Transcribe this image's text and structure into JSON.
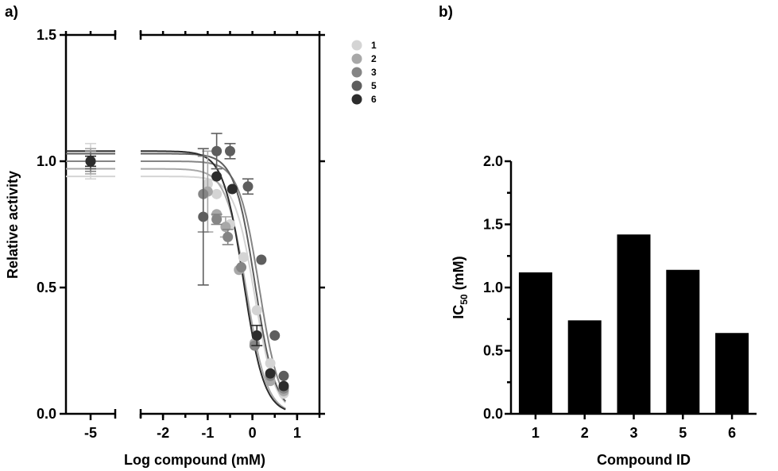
{
  "chart_data": [
    {
      "panel_label": "a)",
      "type": "scatter",
      "xlabel": "Log compound (mM)",
      "ylabel": "Relative activity",
      "ylim": [
        0,
        1.5
      ],
      "y_ticks": [
        "0.0",
        "0.5",
        "1.0",
        "1.5"
      ],
      "x_ticks": [
        "-5",
        "-2",
        "-1",
        "0",
        "1"
      ],
      "x_axis_broken": true,
      "xlim_left_segment": [
        -5.5,
        -4.5
      ],
      "xlim_right_segment": [
        -2.5,
        1.5
      ],
      "legend_position": "right",
      "series": [
        {
          "name": "1",
          "color": "#d4d4d4",
          "points": [
            [
              -5,
              1.0
            ],
            [
              -1.0,
              0.91
            ],
            [
              -0.8,
              0.87
            ],
            [
              -0.5,
              0.75
            ],
            [
              -0.2,
              0.62
            ],
            [
              0.1,
              0.41
            ],
            [
              0.4,
              0.2
            ],
            [
              0.7,
              0.08
            ]
          ],
          "errors": [
            0.07,
            0,
            0,
            0,
            0,
            0,
            0,
            0
          ],
          "fit": {
            "top": 0.94,
            "bottom": 0.0,
            "log_ic50": 0.049
          }
        },
        {
          "name": "2",
          "color": "#a8a8a8",
          "points": [
            [
              -5,
              1.0
            ],
            [
              -1.0,
              0.88
            ],
            [
              -0.8,
              0.79
            ],
            [
              -0.6,
              0.74
            ],
            [
              -0.3,
              0.57
            ],
            [
              0.05,
              0.28
            ],
            [
              0.4,
              0.13
            ],
            [
              0.7,
              0.09
            ]
          ],
          "errors": [
            0.05,
            0.16,
            0,
            0.04,
            0,
            0,
            0,
            0
          ],
          "fit": {
            "top": 0.97,
            "bottom": 0.0,
            "log_ic50": -0.131
          }
        },
        {
          "name": "3",
          "color": "#858585",
          "points": [
            [
              -5,
              1.0
            ],
            [
              -1.1,
              0.87
            ],
            [
              -0.8,
              0.77
            ],
            [
              -0.55,
              0.7
            ],
            [
              -0.25,
              0.58
            ],
            [
              0.05,
              0.27
            ],
            [
              0.4,
              0.15
            ],
            [
              0.7,
              0.1
            ]
          ],
          "errors": [
            0.04,
            0.15,
            0.02,
            0.03,
            0,
            0,
            0,
            0
          ],
          "fit": {
            "top": 1.0,
            "bottom": 0.0,
            "log_ic50": 0.152
          }
        },
        {
          "name": "5",
          "color": "#5e5e5e",
          "points": [
            [
              -5,
              1.0
            ],
            [
              -1.1,
              0.78
            ],
            [
              -0.8,
              1.04
            ],
            [
              -0.5,
              1.04
            ],
            [
              -0.1,
              0.9
            ],
            [
              0.2,
              0.61
            ],
            [
              0.5,
              0.31
            ],
            [
              0.7,
              0.15
            ]
          ],
          "errors": [
            0.03,
            0.27,
            0.07,
            0.03,
            0.03,
            0,
            0,
            0
          ],
          "fit": {
            "top": 1.03,
            "bottom": 0.0,
            "log_ic50": 0.057
          }
        },
        {
          "name": "6",
          "color": "#2c2c2c",
          "points": [
            [
              -5,
              1.0
            ],
            [
              -0.8,
              0.94
            ],
            [
              -0.45,
              0.89
            ],
            [
              0.1,
              0.31
            ],
            [
              0.4,
              0.16
            ],
            [
              0.7,
              0.11
            ]
          ],
          "errors": [
            0.02,
            0,
            0,
            0.04,
            0,
            0
          ],
          "fit": {
            "top": 1.04,
            "bottom": 0.0,
            "log_ic50": -0.194
          }
        }
      ]
    },
    {
      "panel_label": "b)",
      "type": "bar",
      "xlabel": "Compound ID",
      "ylabel_main": "IC",
      "ylabel_sub": "50",
      "ylabel_unit": " (mM)",
      "ylim": [
        0,
        2.0
      ],
      "y_ticks": [
        "0.0",
        "0.5",
        "1.0",
        "1.5",
        "2.0"
      ],
      "categories": [
        "1",
        "2",
        "3",
        "5",
        "6"
      ],
      "values": [
        1.12,
        0.74,
        1.42,
        1.14,
        0.64
      ],
      "bar_color": "#000000"
    }
  ]
}
